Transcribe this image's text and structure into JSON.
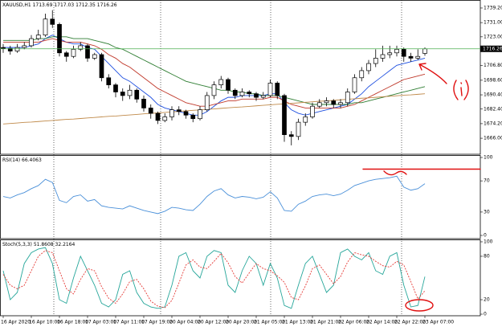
{
  "chart_data": [
    {
      "type": "candlestick",
      "title": "XAUUSD,H1",
      "categories": [
        "16 Apr 2020",
        null,
        null,
        null,
        "16 Apr 10:00",
        null,
        null,
        null,
        "16 Apr 18:00",
        null,
        null,
        null,
        "17 Apr 03:00",
        null,
        null,
        null,
        "17 Apr 11:00",
        null,
        null,
        null,
        "17 Apr 19:00",
        null,
        null,
        null,
        "20 Apr 04:00",
        null,
        null,
        null,
        "20 Apr 12:00",
        null,
        null,
        null,
        "20 Apr 20:00",
        null,
        null,
        null,
        "21 Apr 05:00",
        null,
        null,
        null,
        "21 Apr 13:00",
        null,
        null,
        null,
        "21 Apr 21:00",
        null,
        null,
        null,
        "22 Apr 06:00",
        null,
        null,
        null,
        "22 Apr 14:00",
        null,
        null,
        null,
        "22 Apr 22:00",
        null,
        null,
        null,
        "23 Apr 07:00"
      ],
      "open": [
        1717,
        1716.5,
        1715,
        1717,
        1718,
        1722,
        1724,
        1733,
        1730,
        1714,
        1712,
        1716,
        1718,
        1711,
        1713,
        1700,
        1696,
        1692,
        1690,
        1693,
        1688,
        1683,
        1680,
        1676,
        1678,
        1682,
        1681,
        1679,
        1677,
        1682,
        1690,
        1696,
        1699,
        1693,
        1690,
        1692,
        1691,
        1689,
        1690,
        1697,
        1690,
        1668,
        1667,
        1675,
        1678,
        1684,
        1686,
        1687,
        1685,
        1686,
        1692,
        1700,
        1704,
        1708,
        1711,
        1713,
        1714,
        1716,
        1712,
        1711,
        1713.69
      ],
      "high": [
        1719,
        1718,
        1719,
        1720,
        1724,
        1727,
        1736,
        1738,
        1731,
        1715,
        1718,
        1720,
        1719,
        1714,
        1714,
        1702,
        1697,
        1694,
        1696,
        1694,
        1690,
        1685,
        1681,
        1680,
        1684,
        1684,
        1682,
        1680,
        1684,
        1692,
        1698,
        1701,
        1700,
        1694,
        1694,
        1693,
        1692,
        1692,
        1699,
        1698,
        1691,
        1670,
        1677,
        1680,
        1686,
        1688,
        1689,
        1688,
        1688,
        1694,
        1702,
        1706,
        1710,
        1716,
        1718,
        1718,
        1718,
        1717,
        1714,
        1716,
        1717.03
      ],
      "low": [
        1714,
        1713,
        1714,
        1716,
        1717,
        1721,
        1723,
        1728,
        1712,
        1709,
        1711,
        1715,
        1709,
        1710,
        1698,
        1694,
        1689,
        1687,
        1688,
        1686,
        1681,
        1677,
        1674,
        1675,
        1676,
        1679,
        1677,
        1675,
        1676,
        1681,
        1688,
        1694,
        1691,
        1688,
        1689,
        1689,
        1687,
        1688,
        1689,
        1688,
        1664,
        1662,
        1665,
        1673,
        1677,
        1683,
        1684,
        1683,
        1683,
        1684,
        1691,
        1698,
        1702,
        1706,
        1709,
        1711,
        1712,
        1709,
        1709,
        1710,
        1712.35
      ],
      "close": [
        1716.5,
        1715,
        1717,
        1718,
        1722,
        1724,
        1733,
        1730,
        1714,
        1712,
        1716,
        1718,
        1711,
        1713,
        1700,
        1696,
        1692,
        1690,
        1693,
        1688,
        1683,
        1680,
        1676,
        1678,
        1682,
        1681,
        1679,
        1677,
        1682,
        1690,
        1696,
        1699,
        1693,
        1690,
        1692,
        1691,
        1689,
        1690,
        1697,
        1690,
        1668,
        1667,
        1675,
        1678,
        1684,
        1686,
        1687,
        1685,
        1686,
        1692,
        1700,
        1704,
        1708,
        1711,
        1713,
        1714,
        1716,
        1712,
        1711,
        1712,
        1716.26
      ],
      "series": [
        {
          "color": "#1e4fe0",
          "values": [
            1717,
            1717,
            1717,
            1717,
            1718,
            1719,
            1722,
            1724,
            1722,
            1720,
            1719,
            1719,
            1717,
            1716,
            1712,
            1708,
            1704,
            1700,
            1698,
            1695,
            1692,
            1689,
            1685,
            1683,
            1682,
            1681,
            1680,
            1679,
            1679,
            1681,
            1684,
            1687,
            1689,
            1689,
            1690,
            1690,
            1690,
            1690,
            1691,
            1691,
            1686,
            1682,
            1680,
            1679,
            1680,
            1681,
            1682,
            1683,
            1684,
            1685,
            1688,
            1691,
            1695,
            1698,
            1701,
            1704,
            1707,
            1708,
            1709,
            1710,
            1711
          ]
        },
        {
          "color": "#c0392b",
          "values": [
            1720,
            1720,
            1720,
            1720,
            1720,
            1720,
            1721,
            1722,
            1721,
            1720,
            1720,
            1720,
            1719,
            1718,
            1716,
            1713,
            1711,
            1708,
            1706,
            1703,
            1700,
            1697,
            1694,
            1692,
            1690,
            1688,
            1686,
            1685,
            1684,
            1684,
            1685,
            1686,
            1687,
            1687,
            1688,
            1688,
            1688,
            1688,
            1689,
            1689,
            1687,
            1685,
            1684,
            1683,
            1683,
            1683,
            1683,
            1683,
            1683,
            1684,
            1685,
            1687,
            1689,
            1691,
            1693,
            1695,
            1697,
            1699,
            1700,
            1701,
            1702
          ]
        },
        {
          "color": "#2e7d32",
          "values": [
            1721,
            1721,
            1721,
            1721,
            1721,
            1722,
            1722,
            1723,
            1723,
            1723,
            1722,
            1722,
            1722,
            1721,
            1720,
            1719,
            1717,
            1716,
            1714,
            1712,
            1710,
            1708,
            1706,
            1704,
            1702,
            1700,
            1698,
            1697,
            1696,
            1695,
            1694,
            1693,
            1693,
            1692,
            1692,
            1691,
            1691,
            1690,
            1690,
            1690,
            1689,
            1688,
            1687,
            1686,
            1685,
            1685,
            1685,
            1685,
            1685,
            1685,
            1686,
            1686,
            1687,
            1688,
            1689,
            1690,
            1691,
            1692,
            1693,
            1694,
            1695
          ]
        },
        {
          "color": "#c08a4a",
          "values": [
            1674,
            1674.3,
            1674.6,
            1674.9,
            1675.1,
            1675.4,
            1675.7,
            1676,
            1676.3,
            1676.6,
            1676.8,
            1677.1,
            1677.4,
            1677.7,
            1678,
            1678.3,
            1678.5,
            1678.8,
            1679.1,
            1679.4,
            1679.7,
            1680,
            1680.2,
            1680.5,
            1680.8,
            1681.1,
            1681.4,
            1681.7,
            1681.9,
            1682.2,
            1682.5,
            1682.8,
            1683.1,
            1683.4,
            1683.6,
            1683.9,
            1684.2,
            1684.5,
            1684.8,
            1685.1,
            1685.3,
            1685.6,
            1685.9,
            1686.2,
            1686.5,
            1686.8,
            1687,
            1687.3,
            1687.6,
            1687.9,
            1688.2,
            1688.5,
            1688.7,
            1689,
            1689.3,
            1689.6,
            1689.9,
            1690.2,
            1690.4,
            1690.7,
            1691
          ]
        }
      ],
      "ylim": [
        1657.0,
        1743.7
      ],
      "yticks": [
        {
          "value": 1739.2,
          "label": "1739.20"
        },
        {
          "value": 1731,
          "label": "1731.00"
        },
        {
          "value": 1723,
          "label": "1723.00"
        },
        {
          "value": 1706.8,
          "label": "1706.80"
        },
        {
          "value": 1698.6,
          "label": "1698.60"
        },
        {
          "value": 1690.4,
          "label": "1690.40"
        },
        {
          "value": 1682.4,
          "label": "1682.40"
        },
        {
          "value": 1674.2,
          "label": "1674.20"
        },
        {
          "value": 1666,
          "label": "1666.00"
        }
      ]
    },
    {
      "type": "line",
      "title": "RSI(14)",
      "series": [
        {
          "color": "#4a90d9",
          "values": [
            50,
            48,
            52,
            55,
            60,
            64,
            72,
            68,
            45,
            42,
            50,
            52,
            44,
            46,
            38,
            36,
            35,
            34,
            38,
            35,
            32,
            30,
            28,
            31,
            36,
            35,
            33,
            32,
            40,
            50,
            57,
            60,
            52,
            48,
            50,
            49,
            47,
            49,
            56,
            48,
            32,
            31,
            40,
            44,
            50,
            52,
            53,
            51,
            53,
            58,
            64,
            67,
            70,
            72,
            73,
            74,
            76,
            62,
            58,
            60,
            66.4063
          ]
        }
      ],
      "ylim": [
        -4.1,
        103.1
      ],
      "yticks": [
        100,
        70,
        30,
        0
      ]
    },
    {
      "type": "line",
      "title": "Stoch(5,3,3)",
      "series": [
        {
          "color": "#26a69a",
          "style": "solid",
          "values": [
            60,
            20,
            30,
            70,
            85,
            90,
            92,
            70,
            20,
            15,
            50,
            80,
            60,
            40,
            15,
            10,
            20,
            55,
            60,
            30,
            15,
            10,
            8,
            10,
            40,
            80,
            85,
            60,
            50,
            80,
            88,
            85,
            40,
            30,
            60,
            80,
            70,
            40,
            70,
            50,
            12,
            8,
            40,
            70,
            80,
            55,
            30,
            40,
            85,
            90,
            80,
            75,
            85,
            60,
            55,
            80,
            85,
            40,
            10,
            12,
            51.8608
          ]
        },
        {
          "color": "#e53935",
          "style": "dashed",
          "values": [
            55,
            40,
            35,
            40,
            60,
            80,
            88,
            85,
            60,
            35,
            28,
            48,
            63,
            60,
            38,
            22,
            15,
            28,
            45,
            48,
            35,
            18,
            11,
            9,
            19,
            43,
            68,
            75,
            65,
            63,
            73,
            84,
            71,
            52,
            43,
            57,
            70,
            63,
            60,
            53,
            44,
            23,
            20,
            39,
            63,
            68,
            55,
            42,
            52,
            72,
            85,
            82,
            80,
            73,
            67,
            65,
            73,
            68,
            45,
            21,
            32.2164
          ]
        }
      ],
      "ylim": [
        -2.2,
        103.3
      ],
      "yticks": [
        100,
        80,
        20,
        0
      ]
    }
  ]
}
